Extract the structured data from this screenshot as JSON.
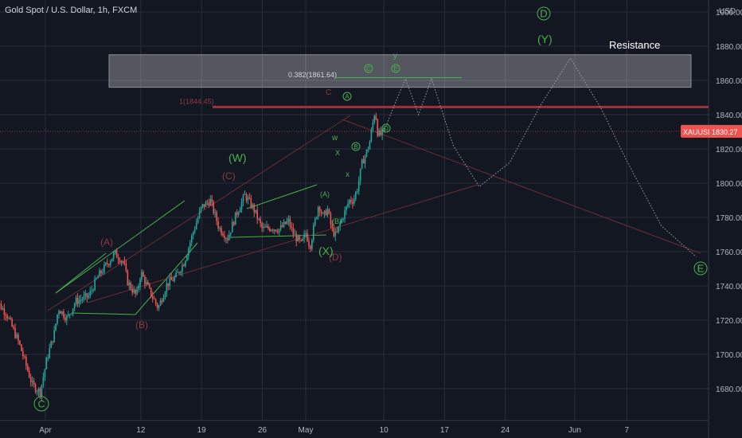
{
  "window": {
    "title": "Gold Spot / U.S. Dollar, 1h, FXCM"
  },
  "colors": {
    "background": "#131722",
    "up": "#26a69a",
    "down": "#ef5350",
    "green_label": "#4caf50",
    "red_label": "#8b3a45",
    "resistance_zone": "#ffffff",
    "price_tag": "#ef5350",
    "grid": "#2a2e39"
  },
  "chart_data": {
    "type": "candlestick",
    "title": "Gold Spot / U.S. Dollar, 1h, FXCM",
    "currency_label": "USD",
    "symbol": "XAUUSD",
    "last_price": "1830.27",
    "ylim": [
      1665,
      1915
    ],
    "x_ticks": [
      "Apr",
      "12",
      "19",
      "26",
      "May",
      "10",
      "17",
      "24",
      "Jun",
      "7"
    ],
    "x_tick_days": [
      0,
      11,
      18,
      25,
      30,
      39,
      46,
      53,
      61,
      67
    ],
    "y_ticks": [
      "1680.00",
      "1700.00",
      "1720.00",
      "1740.00",
      "1760.00",
      "1780.00",
      "1800.00",
      "1820.00",
      "1840.00",
      "1860.00",
      "1880.00",
      "1900.00"
    ],
    "y_tick_values": [
      1680,
      1700,
      1720,
      1740,
      1760,
      1780,
      1800,
      1820,
      1840,
      1860,
      1880,
      1900
    ],
    "price_path": [
      [
        -6,
        1733
      ],
      [
        -4.5,
        1724
      ],
      [
        -3,
        1706
      ],
      [
        -1.5,
        1682
      ],
      [
        -0.6,
        1678
      ],
      [
        0.2,
        1698
      ],
      [
        1,
        1712
      ],
      [
        1.5,
        1727
      ],
      [
        2.5,
        1721
      ],
      [
        3.5,
        1731
      ],
      [
        5,
        1734
      ],
      [
        6,
        1745
      ],
      [
        7,
        1752
      ],
      [
        8,
        1759
      ],
      [
        9,
        1754
      ],
      [
        9.5,
        1742
      ],
      [
        10.5,
        1734
      ],
      [
        11,
        1748
      ],
      [
        12,
        1737
      ],
      [
        13,
        1727
      ],
      [
        14,
        1741
      ],
      [
        15,
        1745
      ],
      [
        16,
        1754
      ],
      [
        17,
        1771
      ],
      [
        18,
        1786
      ],
      [
        19,
        1790
      ],
      [
        20,
        1774
      ],
      [
        21,
        1768
      ],
      [
        22,
        1782
      ],
      [
        23,
        1793
      ],
      [
        24,
        1785
      ],
      [
        25,
        1773
      ],
      [
        26,
        1774
      ],
      [
        27,
        1773
      ],
      [
        28,
        1778
      ],
      [
        28.5,
        1771
      ],
      [
        29.5,
        1764
      ],
      [
        30,
        1771
      ],
      [
        30.5,
        1763
      ],
      [
        31,
        1776
      ],
      [
        31.5,
        1788
      ],
      [
        32,
        1780
      ],
      [
        32.5,
        1785
      ],
      [
        33,
        1773
      ],
      [
        33.5,
        1769
      ],
      [
        34,
        1777
      ],
      [
        34.5,
        1783
      ],
      [
        35,
        1790
      ],
      [
        35.5,
        1790
      ],
      [
        36,
        1798
      ],
      [
        36.5,
        1812
      ],
      [
        37,
        1818
      ],
      [
        37.3,
        1822
      ],
      [
        37.7,
        1834
      ],
      [
        38,
        1843
      ],
      [
        38.3,
        1829
      ],
      [
        38.6,
        1828
      ],
      [
        39,
        1830.27
      ]
    ],
    "projection_path": [
      [
        39,
        1830
      ],
      [
        40,
        1843
      ],
      [
        41.5,
        1861
      ],
      [
        43,
        1840
      ],
      [
        44.5,
        1861
      ],
      [
        47,
        1822
      ],
      [
        50,
        1798
      ],
      [
        53.5,
        1812
      ],
      [
        57,
        1845
      ],
      [
        60.5,
        1873
      ],
      [
        64,
        1844
      ],
      [
        67,
        1813
      ],
      [
        71,
        1775
      ],
      [
        75,
        1757
      ]
    ],
    "annotations": {
      "resistance_label": "Resistance",
      "fib_label": "0.382(1861.64)",
      "fib_value": 1861.64,
      "level_label": "1(1844.45)",
      "level_value": 1844.45,
      "resistance_zone": [
        1856,
        1875
      ],
      "red_labels": [
        "(A)",
        "(B)",
        "(C)",
        "(D)",
        "C"
      ],
      "green_labels": [
        "(W)",
        "(X)",
        "(Y)",
        "(A)",
        "(B)",
        "w",
        "x",
        "y",
        "X"
      ],
      "circled_labels": [
        "C",
        "A",
        "B",
        "C",
        "D",
        "E",
        "D",
        "E",
        "C"
      ]
    }
  }
}
